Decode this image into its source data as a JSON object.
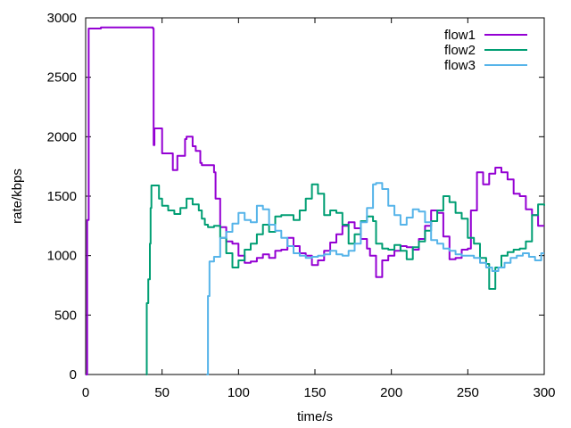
{
  "chart_data": {
    "type": "line",
    "title": "",
    "xlabel": "time/s",
    "ylabel": "rate/kbps",
    "xlim": [
      0,
      300
    ],
    "ylim": [
      0,
      3000
    ],
    "xticks": [
      0,
      50,
      100,
      150,
      200,
      250,
      300
    ],
    "yticks": [
      0,
      500,
      1000,
      1500,
      2000,
      2500,
      3000
    ],
    "grid": false,
    "legend_position": "top-right",
    "series": [
      {
        "name": "flow1",
        "color": "#9400d3",
        "x": [
          0,
          1,
          2,
          10,
          20,
          30,
          40,
          44,
          44.5,
          45,
          49,
          50,
          55,
          57,
          60,
          62,
          65,
          66,
          70,
          72,
          75,
          76,
          84,
          85,
          88,
          92,
          96,
          100,
          104,
          108,
          112,
          116,
          120,
          124,
          128,
          132,
          136,
          140,
          144,
          148,
          152,
          156,
          160,
          164,
          168,
          172,
          176,
          180,
          184,
          186,
          190,
          194,
          198,
          202,
          206,
          210,
          214,
          218,
          222,
          226,
          230,
          234,
          238,
          242,
          246,
          250,
          252,
          256,
          260,
          264,
          268,
          272,
          276,
          280,
          284,
          288,
          292,
          296,
          300
        ],
        "y": [
          0,
          1300,
          2910,
          2920,
          2920,
          2920,
          2920,
          2910,
          1930,
          2070,
          2070,
          1860,
          1860,
          1720,
          1840,
          1840,
          1980,
          2000,
          1920,
          1880,
          1780,
          1760,
          1700,
          1480,
          1240,
          1120,
          1100,
          1000,
          940,
          950,
          980,
          1010,
          980,
          1040,
          1050,
          1150,
          1080,
          1020,
          1000,
          920,
          960,
          1040,
          1110,
          1180,
          1250,
          1280,
          1230,
          1140,
          1060,
          1000,
          820,
          960,
          1000,
          1040,
          1080,
          1070,
          1050,
          1140,
          1250,
          1380,
          1360,
          1160,
          970,
          980,
          1050,
          1060,
          1380,
          1700,
          1600,
          1690,
          1740,
          1700,
          1640,
          1520,
          1500,
          1390,
          1340,
          1250,
          1250
        ]
      },
      {
        "name": "flow2",
        "color": "#009e73",
        "x": [
          0,
          39.5,
          40,
          41,
          42,
          42.5,
          43,
          44,
          46,
          48,
          50,
          54,
          58,
          62,
          66,
          70,
          74,
          76,
          78,
          80,
          84,
          88,
          92,
          96,
          100,
          104,
          108,
          112,
          116,
          120,
          124,
          128,
          132,
          136,
          140,
          144,
          148,
          152,
          156,
          160,
          164,
          168,
          172,
          176,
          180,
          184,
          188,
          190,
          194,
          198,
          202,
          206,
          210,
          214,
          218,
          222,
          226,
          230,
          234,
          238,
          242,
          246,
          250,
          254,
          258,
          262,
          264,
          268,
          272,
          276,
          280,
          284,
          288,
          292,
          296,
          300
        ],
        "y": [
          null,
          0,
          600,
          800,
          1100,
          1400,
          1590,
          1590,
          1590,
          1480,
          1420,
          1380,
          1350,
          1400,
          1480,
          1430,
          1380,
          1310,
          1260,
          1240,
          1250,
          1150,
          1020,
          900,
          960,
          1050,
          1100,
          1180,
          1260,
          1200,
          1330,
          1340,
          1340,
          1300,
          1380,
          1480,
          1600,
          1520,
          1340,
          1380,
          1360,
          1260,
          1100,
          1180,
          1290,
          1330,
          1290,
          1100,
          1060,
          1050,
          1090,
          1040,
          970,
          1070,
          1120,
          1210,
          1290,
          1380,
          1500,
          1450,
          1360,
          1310,
          1150,
          1100,
          980,
          930,
          720,
          900,
          1000,
          1030,
          1050,
          1060,
          1120,
          1340,
          1430,
          1420
        ]
      },
      {
        "name": "flow3",
        "color": "#56b4e9",
        "x": [
          0,
          79,
          80,
          81,
          84,
          88,
          92,
          96,
          100,
          104,
          108,
          112,
          116,
          120,
          124,
          128,
          132,
          136,
          140,
          144,
          148,
          152,
          156,
          160,
          164,
          168,
          172,
          176,
          180,
          184,
          188,
          190,
          194,
          198,
          202,
          206,
          210,
          214,
          218,
          222,
          226,
          230,
          234,
          238,
          242,
          246,
          250,
          254,
          258,
          262,
          266,
          270,
          274,
          278,
          282,
          286,
          290,
          294,
          298,
          300
        ],
        "y": [
          null,
          0,
          660,
          950,
          990,
          1150,
          1200,
          1270,
          1360,
          1300,
          1280,
          1420,
          1390,
          1260,
          1210,
          1150,
          1080,
          1020,
          1000,
          980,
          990,
          1000,
          1010,
          1040,
          1010,
          1000,
          1040,
          1100,
          1280,
          1400,
          1600,
          1610,
          1560,
          1420,
          1340,
          1260,
          1320,
          1390,
          1370,
          1280,
          1130,
          1100,
          1060,
          1040,
          1010,
          1000,
          1000,
          980,
          940,
          900,
          870,
          900,
          940,
          980,
          1000,
          1020,
          990,
          960,
          1020,
          1020
        ]
      }
    ]
  }
}
